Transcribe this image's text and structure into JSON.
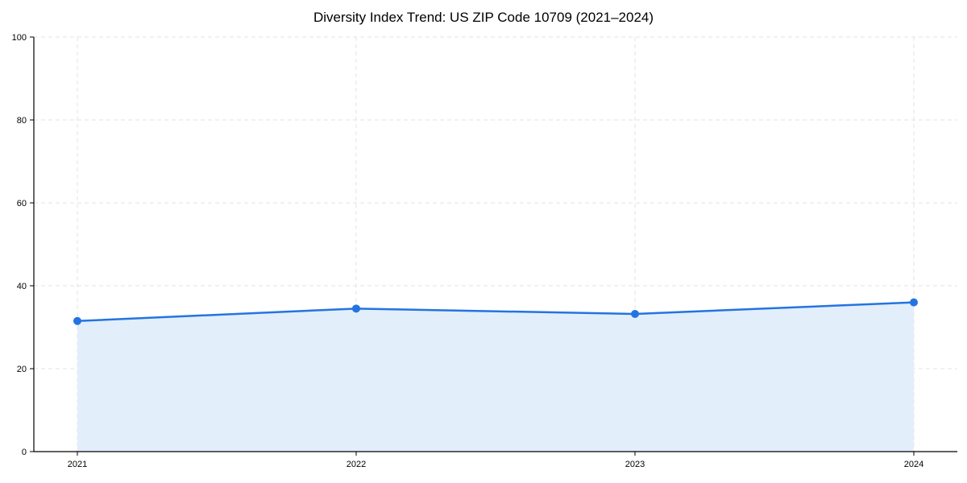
{
  "chart_data": {
    "type": "area",
    "title": "Diversity Index Trend: US ZIP Code 10709 (2021–2024)",
    "categories": [
      "2021",
      "2022",
      "2023",
      "2024"
    ],
    "series": [
      {
        "name": "Diversity Index",
        "values": [
          31.5,
          34.5,
          33.2,
          36.0
        ]
      }
    ],
    "xlabel": "",
    "ylabel": "",
    "ylim": [
      0,
      100
    ],
    "yticks": [
      0,
      20,
      40,
      60,
      80,
      100
    ],
    "grid": "dashed",
    "legend_position": "none",
    "colors": {
      "line": "#2374e1",
      "marker": "#2374e1",
      "area_fill": "#e3eefb",
      "grid": "#e3e3e3",
      "axis": "#000000",
      "text": "#000000",
      "background": "#ffffff"
    }
  }
}
